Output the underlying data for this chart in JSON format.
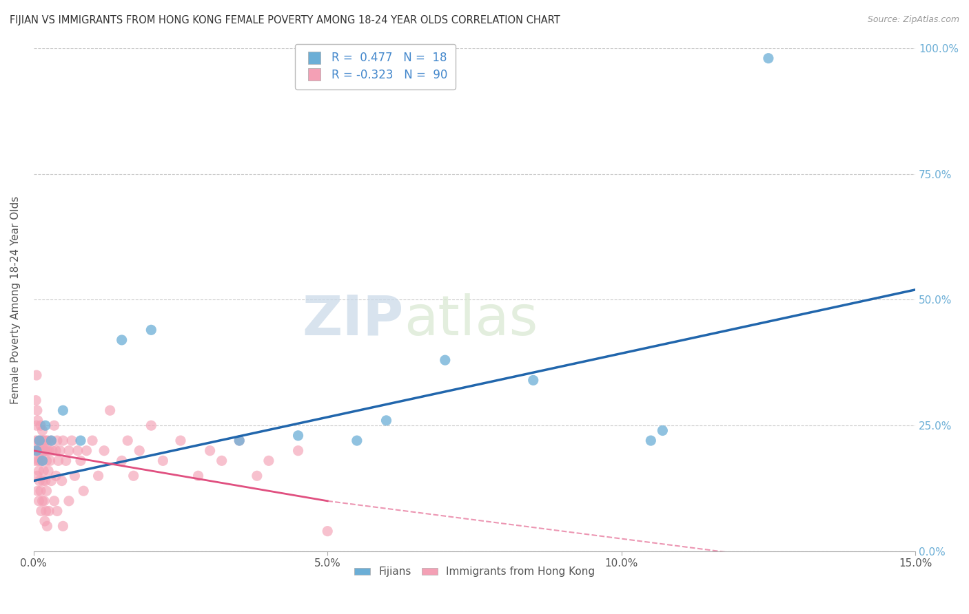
{
  "title": "FIJIAN VS IMMIGRANTS FROM HONG KONG FEMALE POVERTY AMONG 18-24 YEAR OLDS CORRELATION CHART",
  "source": "Source: ZipAtlas.com",
  "ylabel": "Female Poverty Among 18-24 Year Olds",
  "xlim": [
    0.0,
    15.0
  ],
  "ylim": [
    0.0,
    100.0
  ],
  "xticks": [
    0.0,
    5.0,
    10.0,
    15.0
  ],
  "yticks": [
    0.0,
    25.0,
    50.0,
    75.0,
    100.0
  ],
  "fijian_color": "#6baed6",
  "hk_color": "#f4a0b5",
  "fijian_line_color": "#2166ac",
  "hk_line_color": "#e05080",
  "fijian_R": 0.477,
  "fijian_N": 18,
  "hk_R": -0.323,
  "hk_N": 90,
  "watermark_zip": "ZIP",
  "watermark_atlas": "atlas",
  "legend_labels": [
    "Fijians",
    "Immigrants from Hong Kong"
  ],
  "fijian_scatter": [
    [
      0.05,
      20.0
    ],
    [
      0.1,
      22.0
    ],
    [
      0.15,
      18.0
    ],
    [
      0.2,
      25.0
    ],
    [
      0.3,
      22.0
    ],
    [
      0.5,
      28.0
    ],
    [
      0.8,
      22.0
    ],
    [
      1.5,
      42.0
    ],
    [
      2.0,
      44.0
    ],
    [
      3.5,
      22.0
    ],
    [
      4.5,
      23.0
    ],
    [
      5.5,
      22.0
    ],
    [
      6.0,
      26.0
    ],
    [
      7.0,
      38.0
    ],
    [
      8.5,
      34.0
    ],
    [
      10.5,
      22.0
    ],
    [
      10.7,
      24.0
    ],
    [
      12.5,
      98.0
    ]
  ],
  "hk_scatter": [
    [
      0.02,
      20.0
    ],
    [
      0.03,
      18.0
    ],
    [
      0.04,
      22.0
    ],
    [
      0.05,
      25.0
    ],
    [
      0.06,
      15.0
    ],
    [
      0.06,
      28.0
    ],
    [
      0.07,
      20.0
    ],
    [
      0.07,
      12.0
    ],
    [
      0.08,
      22.0
    ],
    [
      0.08,
      18.0
    ],
    [
      0.09,
      16.0
    ],
    [
      0.09,
      10.0
    ],
    [
      0.1,
      20.0
    ],
    [
      0.1,
      14.0
    ],
    [
      0.11,
      22.0
    ],
    [
      0.11,
      18.0
    ],
    [
      0.12,
      25.0
    ],
    [
      0.12,
      12.0
    ],
    [
      0.13,
      20.0
    ],
    [
      0.13,
      8.0
    ],
    [
      0.14,
      22.0
    ],
    [
      0.14,
      18.0
    ],
    [
      0.15,
      24.0
    ],
    [
      0.15,
      10.0
    ],
    [
      0.16,
      20.0
    ],
    [
      0.16,
      14.0
    ],
    [
      0.17,
      22.0
    ],
    [
      0.17,
      16.0
    ],
    [
      0.18,
      20.0
    ],
    [
      0.18,
      10.0
    ],
    [
      0.19,
      22.0
    ],
    [
      0.19,
      6.0
    ],
    [
      0.2,
      20.0
    ],
    [
      0.2,
      14.0
    ],
    [
      0.21,
      22.0
    ],
    [
      0.21,
      8.0
    ],
    [
      0.22,
      18.0
    ],
    [
      0.22,
      12.0
    ],
    [
      0.23,
      20.0
    ],
    [
      0.23,
      5.0
    ],
    [
      0.24,
      22.0
    ],
    [
      0.25,
      16.0
    ],
    [
      0.26,
      20.0
    ],
    [
      0.26,
      8.0
    ],
    [
      0.28,
      18.0
    ],
    [
      0.3,
      22.0
    ],
    [
      0.3,
      14.0
    ],
    [
      0.32,
      20.0
    ],
    [
      0.35,
      25.0
    ],
    [
      0.35,
      10.0
    ],
    [
      0.38,
      20.0
    ],
    [
      0.38,
      15.0
    ],
    [
      0.4,
      22.0
    ],
    [
      0.4,
      8.0
    ],
    [
      0.42,
      18.0
    ],
    [
      0.45,
      20.0
    ],
    [
      0.48,
      14.0
    ],
    [
      0.5,
      22.0
    ],
    [
      0.5,
      5.0
    ],
    [
      0.55,
      18.0
    ],
    [
      0.6,
      20.0
    ],
    [
      0.6,
      10.0
    ],
    [
      0.65,
      22.0
    ],
    [
      0.7,
      15.0
    ],
    [
      0.75,
      20.0
    ],
    [
      0.8,
      18.0
    ],
    [
      0.85,
      12.0
    ],
    [
      0.9,
      20.0
    ],
    [
      1.0,
      22.0
    ],
    [
      1.1,
      15.0
    ],
    [
      1.2,
      20.0
    ],
    [
      1.3,
      28.0
    ],
    [
      1.5,
      18.0
    ],
    [
      1.6,
      22.0
    ],
    [
      1.7,
      15.0
    ],
    [
      1.8,
      20.0
    ],
    [
      2.0,
      25.0
    ],
    [
      2.2,
      18.0
    ],
    [
      2.5,
      22.0
    ],
    [
      2.8,
      15.0
    ],
    [
      3.0,
      20.0
    ],
    [
      3.2,
      18.0
    ],
    [
      3.5,
      22.0
    ],
    [
      3.8,
      15.0
    ],
    [
      4.0,
      18.0
    ],
    [
      4.5,
      20.0
    ],
    [
      5.0,
      4.0
    ],
    [
      0.05,
      35.0
    ],
    [
      0.04,
      30.0
    ],
    [
      0.07,
      26.0
    ]
  ],
  "fijian_trend": [
    0.0,
    15.0,
    14.0,
    52.0
  ],
  "hk_trend_solid": [
    0.0,
    5.0,
    20.0,
    10.0
  ],
  "hk_trend_dash": [
    5.0,
    15.0,
    10.0,
    -5.0
  ]
}
